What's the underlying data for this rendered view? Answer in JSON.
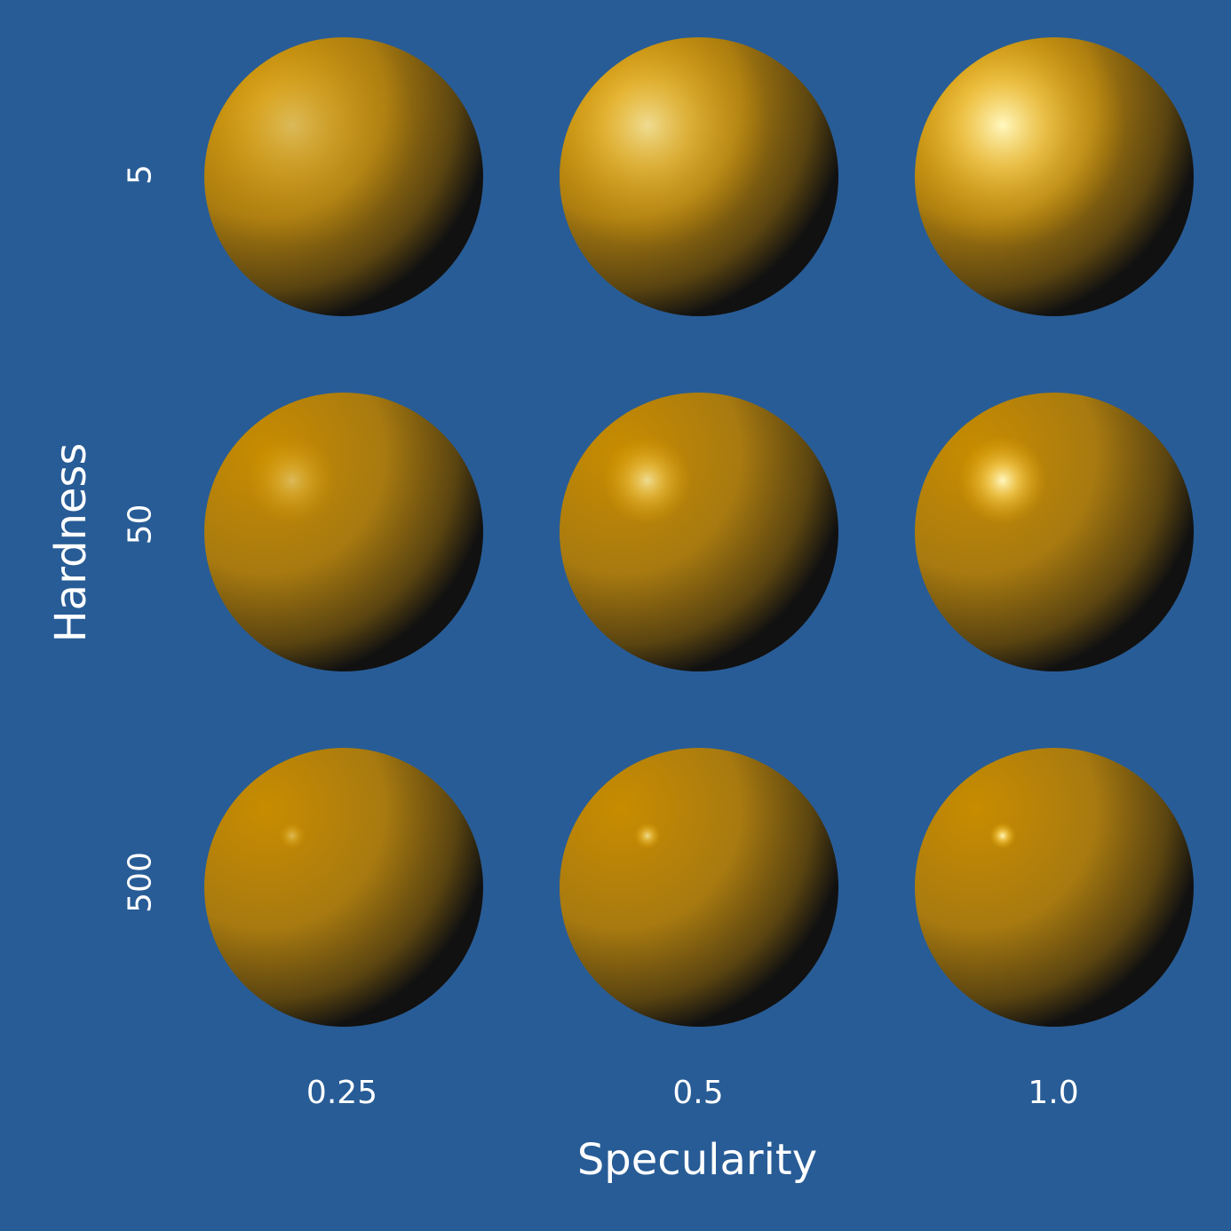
{
  "background_color": "#285c96",
  "sphere_color": "#c88c00",
  "shadow_color": "#111111",
  "highlight_color": "#fff8c0",
  "x_axis": {
    "title": "Specularity",
    "values": [
      "0.25",
      "0.5",
      "1.0"
    ]
  },
  "y_axis": {
    "title": "Hardness",
    "values": [
      "5",
      "50",
      "500"
    ]
  },
  "grid": [
    {
      "hardness": 5,
      "specularity": 0.25
    },
    {
      "hardness": 5,
      "specularity": 0.5
    },
    {
      "hardness": 5,
      "specularity": 1.0
    },
    {
      "hardness": 50,
      "specularity": 0.25
    },
    {
      "hardness": 50,
      "specularity": 0.5
    },
    {
      "hardness": 50,
      "specularity": 1.0
    },
    {
      "hardness": 500,
      "specularity": 0.25
    },
    {
      "hardness": 500,
      "specularity": 0.5
    },
    {
      "hardness": 500,
      "specularity": 1.0
    }
  ]
}
